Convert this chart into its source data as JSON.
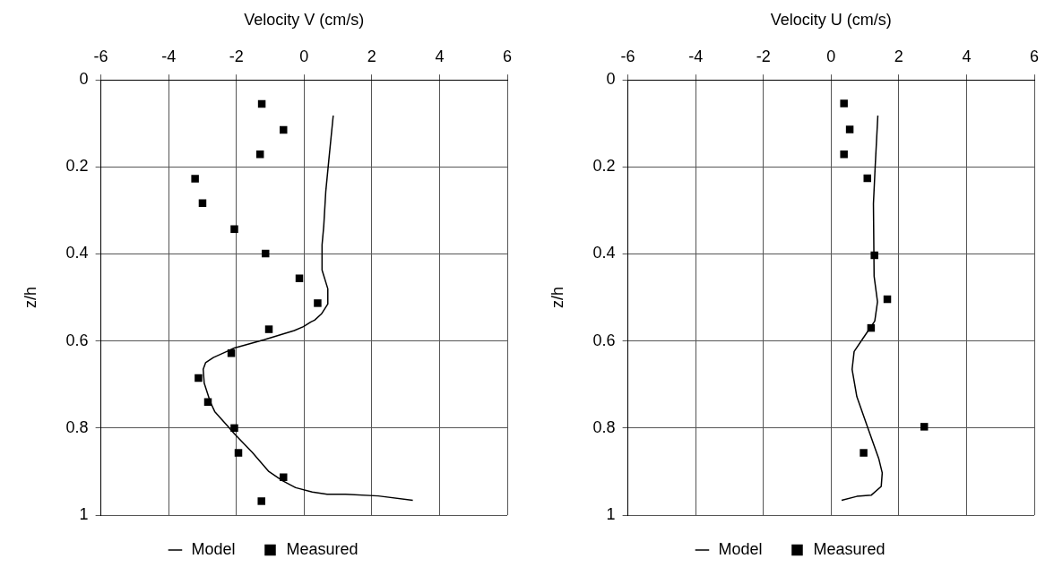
{
  "chart_data": [
    {
      "type": "line",
      "xlabel": "Velocity V (cm/s)",
      "ylabel": "z/h",
      "xlim": [
        -6,
        6
      ],
      "xticks": [
        -6,
        -4,
        -2,
        0,
        2,
        4,
        6
      ],
      "ylim": [
        1,
        0
      ],
      "yticks": [
        0,
        0.2,
        0.4,
        0.6,
        0.8,
        1
      ],
      "grid": true,
      "legend": "bottom",
      "series": [
        {
          "name": "Model",
          "type": "line",
          "color": "#000000",
          "marker": "none",
          "line_style": "solid",
          "x": [
            0.86,
            0.73,
            0.64,
            0.58,
            0.53,
            0.53,
            0.7,
            0.7,
            0.51,
            0.31,
            0.2,
            -0.02,
            -0.29,
            -1.18,
            -2.06,
            -2.68,
            -2.91,
            -2.98,
            -2.95,
            -2.77,
            -2.64,
            -2.06,
            -1.53,
            -1.04,
            -0.64,
            -0.25,
            0.24,
            0.68,
            1.22,
            2.19,
            3.21
          ],
          "values": [
            0.082,
            0.184,
            0.256,
            0.336,
            0.379,
            0.437,
            0.48,
            0.515,
            0.538,
            0.552,
            0.556,
            0.567,
            0.576,
            0.597,
            0.616,
            0.638,
            0.65,
            0.665,
            0.697,
            0.74,
            0.762,
            0.813,
            0.856,
            0.9,
            0.921,
            0.937,
            0.947,
            0.952,
            0.952,
            0.956,
            0.966
          ]
        },
        {
          "name": "Measured",
          "type": "scatter",
          "color": "#000000",
          "marker": "square",
          "x": [
            -1.25,
            -0.61,
            -1.3,
            -3.22,
            -3.0,
            -2.06,
            -1.14,
            -0.14,
            0.4,
            -1.04,
            -2.15,
            -3.12,
            -2.84,
            -2.06,
            -1.94,
            -0.61,
            -1.26
          ],
          "values": [
            0.055,
            0.115,
            0.171,
            0.227,
            0.283,
            0.343,
            0.399,
            0.456,
            0.513,
            0.573,
            0.628,
            0.685,
            0.74,
            0.8,
            0.857,
            0.913,
            0.968
          ]
        }
      ]
    },
    {
      "type": "line",
      "xlabel": "Velocity U (cm/s)",
      "ylabel": "z/h",
      "xlim": [
        -6,
        6
      ],
      "xticks": [
        -6,
        -4,
        -2,
        0,
        2,
        4,
        6
      ],
      "ylim": [
        1,
        0
      ],
      "yticks": [
        0,
        0.2,
        0.4,
        0.6,
        0.8,
        1
      ],
      "grid": true,
      "legend": "bottom",
      "series": [
        {
          "name": "Model",
          "type": "line",
          "color": "#000000",
          "marker": "none",
          "line_style": "solid",
          "x": [
            1.38,
            1.3,
            1.25,
            1.27,
            1.37,
            1.29,
            0.95,
            0.68,
            0.62,
            0.76,
            1.05,
            1.41,
            1.51,
            1.48,
            1.19,
            0.76,
            0.31
          ],
          "values": [
            0.082,
            0.202,
            0.284,
            0.451,
            0.51,
            0.554,
            0.593,
            0.624,
            0.665,
            0.728,
            0.792,
            0.871,
            0.903,
            0.934,
            0.954,
            0.957,
            0.966
          ]
        },
        {
          "name": "Measured",
          "type": "scatter",
          "color": "#000000",
          "marker": "square",
          "x": [
            0.38,
            0.55,
            0.38,
            1.07,
            1.28,
            1.66,
            1.18,
            2.75,
            0.96
          ],
          "values": [
            0.054,
            0.114,
            0.171,
            0.226,
            0.403,
            0.504,
            0.57,
            0.797,
            0.857
          ]
        }
      ]
    }
  ]
}
